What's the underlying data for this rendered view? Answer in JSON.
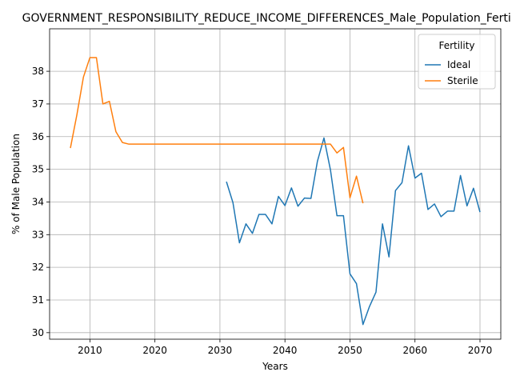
{
  "chart_data": {
    "type": "line",
    "title": "GOVERNMENT_RESPONSIBILITY_REDUCE_INCOME_DIFFERENCES_Male_Population_Fertility",
    "xlabel": "Years",
    "ylabel": "% of Male Population",
    "xlim": [
      2003.8,
      2073.2
    ],
    "ylim": [
      29.8,
      39.3
    ],
    "xticks": [
      2010,
      2020,
      2030,
      2040,
      2050,
      2060,
      2070
    ],
    "yticks": [
      30,
      31,
      32,
      33,
      34,
      35,
      36,
      37,
      38
    ],
    "grid": true,
    "legend": {
      "title": "Fertility",
      "placement": "top-right"
    },
    "series": [
      {
        "name": "Ideal",
        "color": "#1f77b4",
        "x": [
          2031,
          2032,
          2033,
          2034,
          2035,
          2036,
          2037,
          2038,
          2039,
          2040,
          2041,
          2042,
          2043,
          2044,
          2045,
          2046,
          2047,
          2048,
          2049,
          2050,
          2051,
          2052,
          2053,
          2054,
          2055,
          2056,
          2057,
          2058,
          2059,
          2060,
          2061,
          2062,
          2063,
          2064,
          2065,
          2066,
          2067,
          2068,
          2069,
          2070
        ],
        "y": [
          34.62,
          33.98,
          32.75,
          33.33,
          33.04,
          33.62,
          33.62,
          33.33,
          34.17,
          33.89,
          34.43,
          33.87,
          34.12,
          34.11,
          35.25,
          35.96,
          34.98,
          33.58,
          33.58,
          31.8,
          31.5,
          30.25,
          30.8,
          31.24,
          33.33,
          32.32,
          34.35,
          34.59,
          35.72,
          34.73,
          34.88,
          33.77,
          33.94,
          33.55,
          33.72,
          33.72,
          34.81,
          33.88,
          34.42,
          33.69
        ]
      },
      {
        "name": "Sterile",
        "color": "#ff7f0e",
        "x": [
          2007,
          2008,
          2009,
          2010,
          2011,
          2012,
          2013,
          2014,
          2015,
          2016,
          2017,
          2018,
          2019,
          2020,
          2021,
          2022,
          2023,
          2024,
          2025,
          2026,
          2027,
          2028,
          2029,
          2030,
          2031,
          2032,
          2033,
          2034,
          2035,
          2036,
          2037,
          2038,
          2039,
          2040,
          2041,
          2042,
          2043,
          2044,
          2045,
          2046,
          2047,
          2048,
          2049,
          2050,
          2051,
          2052
        ],
        "y": [
          35.65,
          36.67,
          37.82,
          38.42,
          38.42,
          37.0,
          37.08,
          36.15,
          35.82,
          35.77,
          35.77,
          35.77,
          35.77,
          35.77,
          35.77,
          35.77,
          35.77,
          35.77,
          35.77,
          35.77,
          35.77,
          35.77,
          35.77,
          35.77,
          35.77,
          35.77,
          35.77,
          35.77,
          35.77,
          35.77,
          35.77,
          35.77,
          35.77,
          35.77,
          35.77,
          35.77,
          35.77,
          35.77,
          35.77,
          35.77,
          35.77,
          35.5,
          35.67,
          34.13,
          34.79,
          33.96
        ]
      }
    ]
  }
}
